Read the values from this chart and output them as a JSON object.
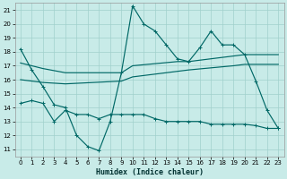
{
  "xlabel": "Humidex (Indice chaleur)",
  "background_color": "#c8ebe8",
  "grid_color": "#a0d0cc",
  "line_color": "#006866",
  "xlim": [
    -0.5,
    23.5
  ],
  "ylim": [
    10.5,
    21.5
  ],
  "yticks": [
    11,
    12,
    13,
    14,
    15,
    16,
    17,
    18,
    19,
    20,
    21
  ],
  "xticks": [
    0,
    1,
    2,
    3,
    4,
    5,
    6,
    7,
    8,
    9,
    10,
    11,
    12,
    13,
    14,
    15,
    16,
    17,
    18,
    19,
    20,
    21,
    22,
    23
  ],
  "line1_x": [
    0,
    1,
    2,
    3,
    4,
    5,
    6,
    7,
    8,
    9,
    10,
    11,
    12,
    13,
    14,
    15,
    16,
    17,
    18,
    19,
    20,
    21,
    22,
    23
  ],
  "line1_y": [
    18.2,
    16.7,
    15.5,
    14.2,
    14.0,
    12.0,
    11.2,
    10.9,
    13.0,
    16.5,
    21.3,
    20.0,
    19.5,
    18.5,
    17.5,
    17.3,
    18.3,
    19.5,
    18.5,
    18.5,
    17.8,
    15.9,
    13.8,
    12.5
  ],
  "line2_x": [
    0,
    1,
    2,
    4,
    9,
    10,
    14,
    15,
    19,
    20,
    21,
    22,
    23
  ],
  "line2_y": [
    17.2,
    17.0,
    16.8,
    16.5,
    16.5,
    17.0,
    17.3,
    17.3,
    17.7,
    17.8,
    17.8,
    17.8,
    17.8
  ],
  "line3_x": [
    0,
    1,
    2,
    4,
    9,
    10,
    14,
    15,
    19,
    20,
    21,
    22,
    23
  ],
  "line3_y": [
    16.0,
    15.9,
    15.8,
    15.7,
    15.9,
    16.2,
    16.6,
    16.7,
    17.0,
    17.1,
    17.1,
    17.1,
    17.1
  ],
  "line4_x": [
    0,
    1,
    2,
    3,
    4,
    5,
    6,
    7,
    8,
    9,
    10,
    11,
    12,
    13,
    14,
    15,
    16,
    17,
    18,
    19,
    20,
    21,
    22,
    23
  ],
  "line4_y": [
    14.3,
    14.5,
    14.3,
    13.0,
    13.8,
    13.5,
    13.5,
    13.2,
    13.5,
    13.5,
    13.5,
    13.5,
    13.2,
    13.0,
    13.0,
    13.0,
    13.0,
    12.8,
    12.8,
    12.8,
    12.8,
    12.7,
    12.5,
    12.5
  ]
}
